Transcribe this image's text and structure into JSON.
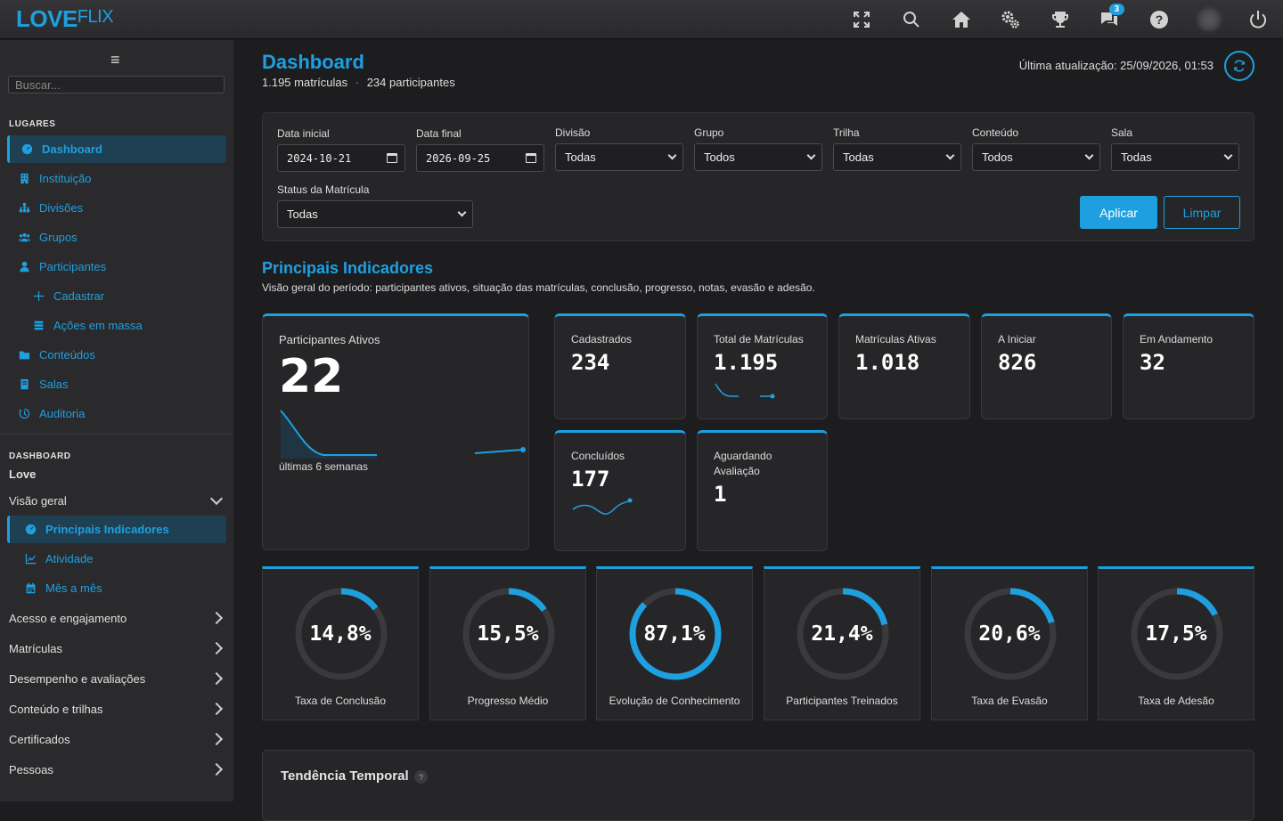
{
  "brand": {
    "part1": "LOVE",
    "part2": "FLIX"
  },
  "topbar": {
    "notifications_badge": "3"
  },
  "sidebar": {
    "search_placeholder": "Buscar...",
    "section_lugares": "LUGARES",
    "items": [
      {
        "label": "Dashboard",
        "icon": "gauge-icon"
      },
      {
        "label": "Instituição",
        "icon": "building-icon"
      },
      {
        "label": "Divisões",
        "icon": "sitemap-icon"
      },
      {
        "label": "Grupos",
        "icon": "users-icon"
      },
      {
        "label": "Participantes",
        "icon": "user-icon"
      },
      {
        "label": "Cadastrar",
        "icon": "plus-icon"
      },
      {
        "label": "Ações em massa",
        "icon": "list-icon"
      },
      {
        "label": "Conteúdos",
        "icon": "folder-icon"
      },
      {
        "label": "Salas",
        "icon": "book-icon"
      },
      {
        "label": "Auditoria",
        "icon": "history-icon"
      }
    ],
    "section_dashboard": "DASHBOARD",
    "dashboard_name": "Love",
    "overview_label": "Visão geral",
    "overview_items": [
      {
        "label": "Principais Indicadores",
        "icon": "gauge-icon"
      },
      {
        "label": "Atividade",
        "icon": "chart-line-icon"
      },
      {
        "label": "Mês a mês",
        "icon": "calendar-icon"
      }
    ],
    "groups": [
      "Acesso e engajamento",
      "Matrículas",
      "Desempenho e avaliações",
      "Conteúdo e trilhas",
      "Certificados",
      "Pessoas"
    ]
  },
  "header": {
    "title": "Dashboard",
    "enrollments": "1.195 matrículas",
    "separator": "·",
    "participants": "234 participantes",
    "last_update": "Última atualização: 25/09/2026, 01:53"
  },
  "filters": {
    "start_label": "Data inicial",
    "start_value": "2024-10-21",
    "end_label": "Data final",
    "end_value": "2026-09-25",
    "division_label": "Divisão",
    "division_value": "Todas",
    "group_label": "Grupo",
    "group_value": "Todos",
    "track_label": "Trilha",
    "track_value": "Todas",
    "content_label": "Conteúdo",
    "content_value": "Todos",
    "room_label": "Sala",
    "room_value": "Todas",
    "status_label": "Status da Matrícula",
    "status_value": "Todas",
    "apply": "Aplicar",
    "clear": "Limpar"
  },
  "indicators": {
    "title": "Principais Indicadores",
    "description": "Visão geral do período: participantes ativos, situação das matrículas, conclusão, progresso, notas, evasão e adesão.",
    "active": {
      "label": "Participantes Ativos",
      "value": "22",
      "note": "últimas 6 semanas"
    },
    "cards": {
      "cadastrados": {
        "label": "Cadastrados",
        "value": "234"
      },
      "total": {
        "label": "Total de Matrículas",
        "value": "1.195"
      },
      "ativas": {
        "label": "Matrículas Ativas",
        "value": "1.018"
      },
      "iniciar": {
        "label": "A Iniciar",
        "value": "826"
      },
      "andamento": {
        "label": "Em Andamento",
        "value": "32"
      },
      "concluidos": {
        "label": "Concluídos",
        "value": "177"
      },
      "aguardando": {
        "label": "Aguardando Avaliação",
        "value": "1"
      }
    },
    "gauges": [
      {
        "label": "Taxa de Conclusão",
        "value": "14,8%",
        "pct": 14.8
      },
      {
        "label": "Progresso Médio",
        "value": "15,5%",
        "pct": 15.5
      },
      {
        "label": "Evolução de Conhecimento",
        "value": "87,1%",
        "pct": 87.1
      },
      {
        "label": "Participantes Treinados",
        "value": "21,4%",
        "pct": 21.4
      },
      {
        "label": "Taxa de Evasão",
        "value": "20,6%",
        "pct": 20.6
      },
      {
        "label": "Taxa de Adesão",
        "value": "17,5%",
        "pct": 17.5
      }
    ]
  },
  "trend": {
    "title": "Tendência Temporal",
    "help": "?"
  },
  "colors": {
    "accent": "#1ea0e0",
    "bg": "#1d1d1f",
    "panel": "#262628",
    "track": "#3a3a3d"
  }
}
